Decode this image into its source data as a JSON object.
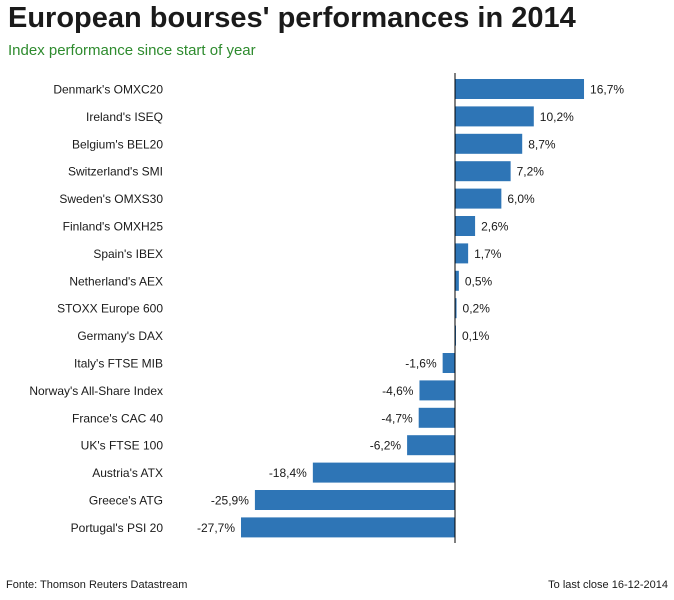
{
  "header": {
    "title": "European bourses' performances in 2014",
    "subtitle": "Index performance since start of year"
  },
  "footer": {
    "source": "Fonte: Thomson Reuters Datastream",
    "note": "To last close 16-12-2014"
  },
  "colors": {
    "bar": "#2e75b6",
    "title": "#1a1a1a",
    "subtitle": "#2e8b2e",
    "axis": "#000000"
  },
  "chart_data": {
    "type": "bar",
    "orientation": "horizontal",
    "title": "European bourses' performances in 2014",
    "subtitle": "Index performance since start of year",
    "categories": [
      "Denmark's OMXC20",
      "Ireland's ISEQ",
      "Belgium's BEL20",
      "Switzerland's SMI",
      "Sweden's OMXS30",
      "Finland's OMXH25",
      "Spain's IBEX",
      "Netherland's AEX",
      "STOXX Europe 600",
      "Germany's DAX",
      "Italy's FTSE MIB",
      "Norway's All-Share Index",
      "France's CAC 40",
      "UK's FTSE 100",
      "Austria's ATX",
      "Greece's ATG",
      "Portugal's PSI 20"
    ],
    "values": [
      16.7,
      10.2,
      8.7,
      7.2,
      6.0,
      2.6,
      1.7,
      0.5,
      0.2,
      0.1,
      -1.6,
      -4.6,
      -4.7,
      -6.2,
      -18.4,
      -25.9,
      -27.7
    ],
    "value_labels": [
      "16,7%",
      "10,2%",
      "8,7%",
      "7,2%",
      "6,0%",
      "2,6%",
      "1,7%",
      "0,5%",
      "0,2%",
      "0,1%",
      "-1,6%",
      "-4,6%",
      "-4,7%",
      "-6,2%",
      "-18,4%",
      "-25,9%",
      "-27,7%"
    ],
    "xlim": [
      -27.7,
      16.7
    ],
    "grid": false,
    "legend": false
  }
}
